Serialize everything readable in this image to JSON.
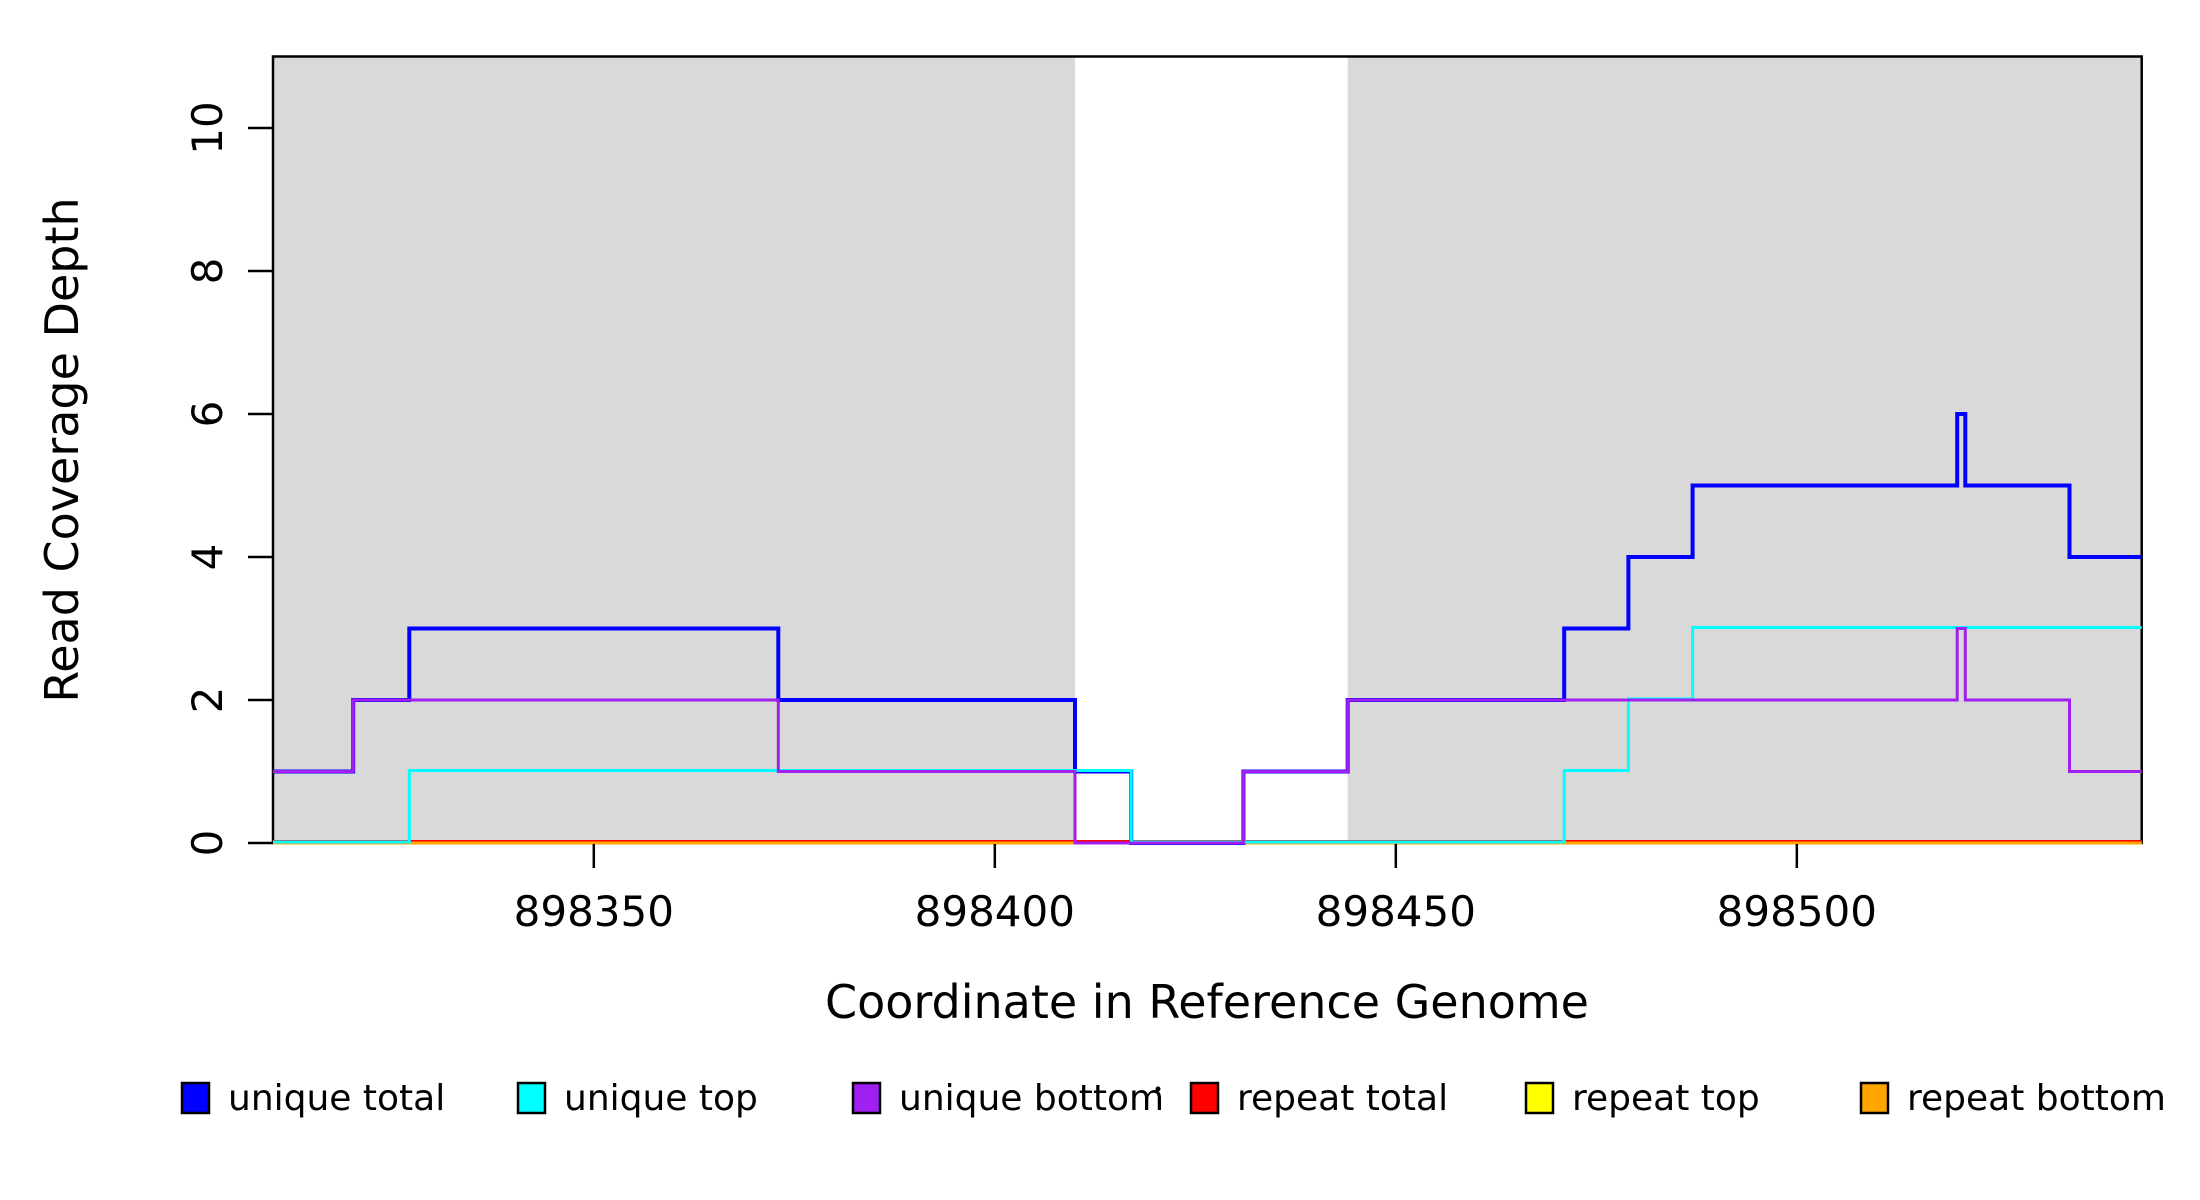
{
  "chart_data": {
    "type": "line",
    "subtype": "step",
    "title": "",
    "xlabel": "Coordinate in Reference Genome",
    "ylabel": "Read Coverage Depth",
    "xlim": [
      898310,
      898543
    ],
    "ylim": [
      0,
      11
    ],
    "x_ticks": [
      898350,
      898400,
      898450,
      898500
    ],
    "y_ticks": [
      0,
      2,
      4,
      6,
      8,
      10
    ],
    "grid": "off",
    "legend_position": "bottom",
    "shade_color": "#D9D9D9",
    "shaded_regions": [
      {
        "from": 898310,
        "to": 898410
      },
      {
        "from": 898444,
        "to": 898543
      }
    ],
    "series": [
      {
        "name": "unique total",
        "color": "#0000FF",
        "width": 4,
        "steps": [
          [
            898310,
            1
          ],
          [
            898320,
            2
          ],
          [
            898327,
            3
          ],
          [
            898373,
            2
          ],
          [
            898410,
            1
          ],
          [
            898417,
            0
          ],
          [
            898431,
            1
          ],
          [
            898444,
            2
          ],
          [
            898471,
            3
          ],
          [
            898479,
            4
          ],
          [
            898487,
            5
          ],
          [
            898520,
            6
          ],
          [
            898521,
            5
          ],
          [
            898534,
            4
          ],
          [
            898543,
            4
          ]
        ]
      },
      {
        "name": "unique top",
        "color": "#00FFFF",
        "width": 3,
        "steps": [
          [
            898310,
            0
          ],
          [
            898327,
            1
          ],
          [
            898417,
            0
          ],
          [
            898471,
            1
          ],
          [
            898479,
            2
          ],
          [
            898487,
            3
          ],
          [
            898543,
            3
          ]
        ]
      },
      {
        "name": "unique bottom",
        "color": "#A020F0",
        "width": 3,
        "steps": [
          [
            898310,
            1
          ],
          [
            898320,
            2
          ],
          [
            898373,
            1
          ],
          [
            898410,
            0
          ],
          [
            898431,
            1
          ],
          [
            898444,
            2
          ],
          [
            898520,
            3
          ],
          [
            898521,
            2
          ],
          [
            898534,
            1
          ],
          [
            898543,
            1
          ]
        ]
      },
      {
        "name": "repeat total",
        "color": "#FF0000",
        "width": 3,
        "steps": [
          [
            898310,
            0
          ],
          [
            898543,
            0
          ]
        ]
      },
      {
        "name": "repeat top",
        "color": "#FFFF00",
        "width": 3,
        "steps": [
          [
            898310,
            0
          ],
          [
            898543,
            0
          ]
        ]
      },
      {
        "name": "repeat bottom",
        "color": "#FFA500",
        "width": 3,
        "steps": [
          [
            898310,
            0
          ],
          [
            898543,
            0
          ]
        ]
      }
    ]
  }
}
